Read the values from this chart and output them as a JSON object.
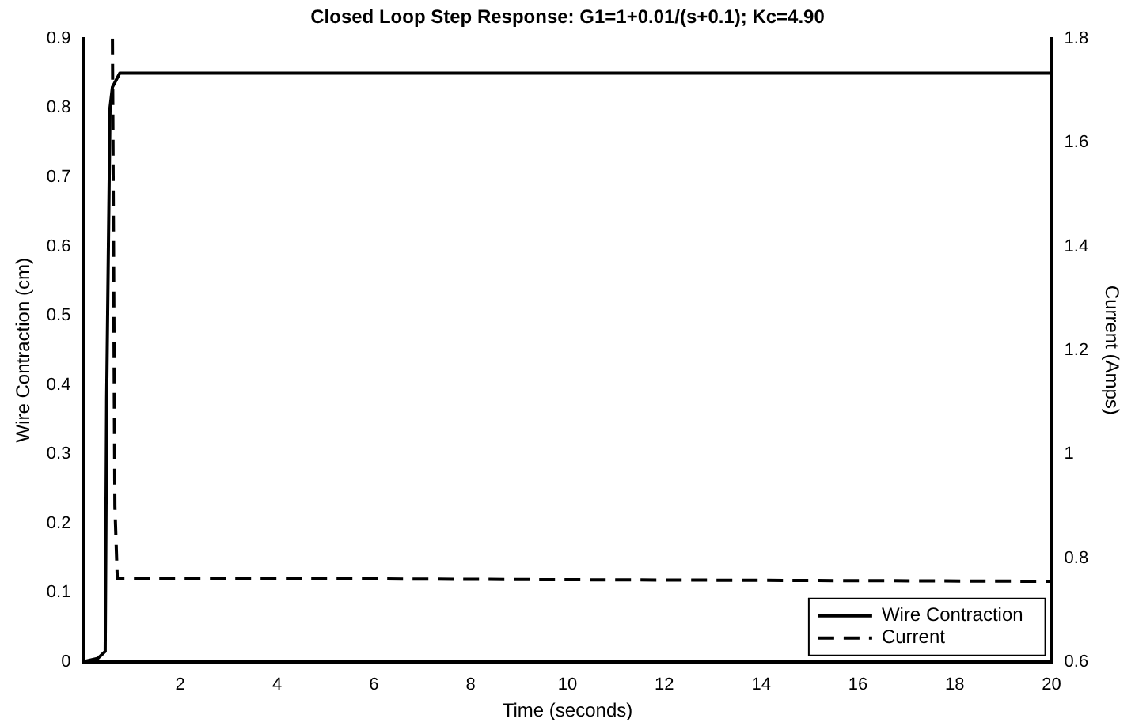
{
  "chart_data": {
    "type": "line",
    "title": "Closed Loop Step Response: G1=1+0.01/(s+0.1); Kc=4.90",
    "xlabel": "Time (seconds)",
    "ylabel": "Wire Contraction (cm)",
    "y2label": "Current (Amps)",
    "xlim": [
      0,
      20
    ],
    "xticks": [
      2,
      4,
      6,
      8,
      10,
      12,
      14,
      16,
      18,
      20
    ],
    "ylim": [
      0,
      0.9
    ],
    "yticks": [
      0,
      0.1,
      0.2,
      0.3,
      0.4,
      0.5,
      0.6,
      0.7,
      0.8,
      0.9
    ],
    "y2lim": [
      0.6,
      1.8
    ],
    "y2ticks": [
      0.6,
      0.8,
      1,
      1.2,
      1.4,
      1.6,
      1.8
    ],
    "grid": false,
    "legend": "bottom right",
    "marker": "none",
    "series": [
      {
        "name": "Wire Contraction",
        "color": "#000000",
        "line_style": "solid",
        "x": [
          0,
          0.3,
          0.45,
          0.48,
          0.5,
          0.55,
          0.6,
          0.75,
          1,
          5,
          20
        ],
        "values": [
          0,
          0.005,
          0.015,
          0.38,
          0.38,
          0.8,
          0.83,
          0.85,
          0.85,
          0.85,
          0.85
        ]
      },
      {
        "name": "Current",
        "color": "#000000",
        "line_style": "dashed",
        "axis": "y2",
        "x": [
          0.6,
          0.65,
          0.7,
          5,
          10,
          20
        ],
        "values": [
          1.8,
          0.9,
          0.76,
          0.76,
          0.758,
          0.755
        ]
      }
    ]
  }
}
